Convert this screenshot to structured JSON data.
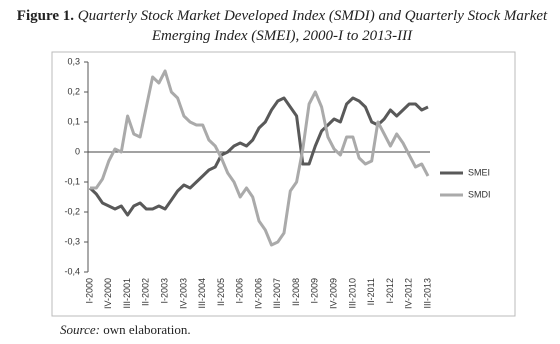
{
  "chart_data": {
    "type": "line",
    "title_label": "Figure 1.",
    "title": "Quarterly Stock Market Developed Index (SMDI) and Quarterly Stock Market Emerging Index (SMEI), 2000-I to 2013-III",
    "source_label": "Source:",
    "source": "own elaboration.",
    "categories": [
      "I-2000",
      null,
      null,
      "IV-2000",
      null,
      null,
      "III-2001",
      null,
      null,
      "II-2002",
      null,
      null,
      "I-2003",
      null,
      null,
      "IV-2003",
      null,
      null,
      "III-2004",
      null,
      null,
      "II-2005",
      null,
      null,
      "I-2006",
      null,
      null,
      "IV-2006",
      null,
      null,
      "III-2007",
      null,
      null,
      "II-2008",
      null,
      null,
      "I-2009",
      null,
      null,
      "IV-2009",
      null,
      null,
      "III-2010",
      null,
      null,
      "II-2011",
      null,
      null,
      "I-2012",
      null,
      null,
      "IV-2012",
      null,
      null,
      "III-2013"
    ],
    "series": [
      {
        "name": "SMEI",
        "color": "#595959",
        "values": [
          -0.12,
          -0.14,
          -0.17,
          -0.18,
          -0.19,
          -0.18,
          -0.21,
          -0.18,
          -0.17,
          -0.19,
          -0.19,
          -0.18,
          -0.19,
          -0.16,
          -0.13,
          -0.11,
          -0.12,
          -0.1,
          -0.08,
          -0.06,
          -0.05,
          -0.01,
          0.0,
          0.02,
          0.03,
          0.02,
          0.04,
          0.08,
          0.1,
          0.14,
          0.17,
          0.18,
          0.15,
          0.12,
          -0.04,
          -0.04,
          0.02,
          0.07,
          0.09,
          0.11,
          0.1,
          0.16,
          0.18,
          0.17,
          0.15,
          0.1,
          0.09,
          0.11,
          0.14,
          0.12,
          0.14,
          0.16,
          0.16,
          0.14,
          0.15
        ]
      },
      {
        "name": "SMDI",
        "color": "#aaaaaa",
        "values": [
          -0.12,
          -0.12,
          -0.09,
          -0.03,
          0.01,
          0.0,
          0.12,
          0.06,
          0.05,
          0.15,
          0.25,
          0.23,
          0.27,
          0.2,
          0.18,
          0.12,
          0.1,
          0.09,
          0.09,
          0.04,
          0.02,
          -0.02,
          -0.07,
          -0.1,
          -0.15,
          -0.12,
          -0.15,
          -0.23,
          -0.26,
          -0.31,
          -0.3,
          -0.27,
          -0.13,
          -0.1,
          0.01,
          0.16,
          0.2,
          0.15,
          0.05,
          0.01,
          -0.01,
          0.05,
          0.05,
          -0.02,
          -0.04,
          -0.03,
          0.1,
          0.06,
          0.02,
          0.06,
          0.03,
          -0.01,
          -0.05,
          -0.04,
          -0.08
        ]
      }
    ],
    "ylim": [
      -0.4,
      0.3
    ],
    "yticks": [
      {
        "value": -0.4,
        "label": "-0,4"
      },
      {
        "value": -0.3,
        "label": "-0,3"
      },
      {
        "value": -0.2,
        "label": "-0,2"
      },
      {
        "value": -0.1,
        "label": "-0,1"
      },
      0,
      {
        "value": 0.1,
        "label": "0,1"
      },
      {
        "value": 0.2,
        "label": "0,2"
      },
      {
        "value": 0.3,
        "label": "0,3"
      }
    ],
    "legend": "right"
  }
}
